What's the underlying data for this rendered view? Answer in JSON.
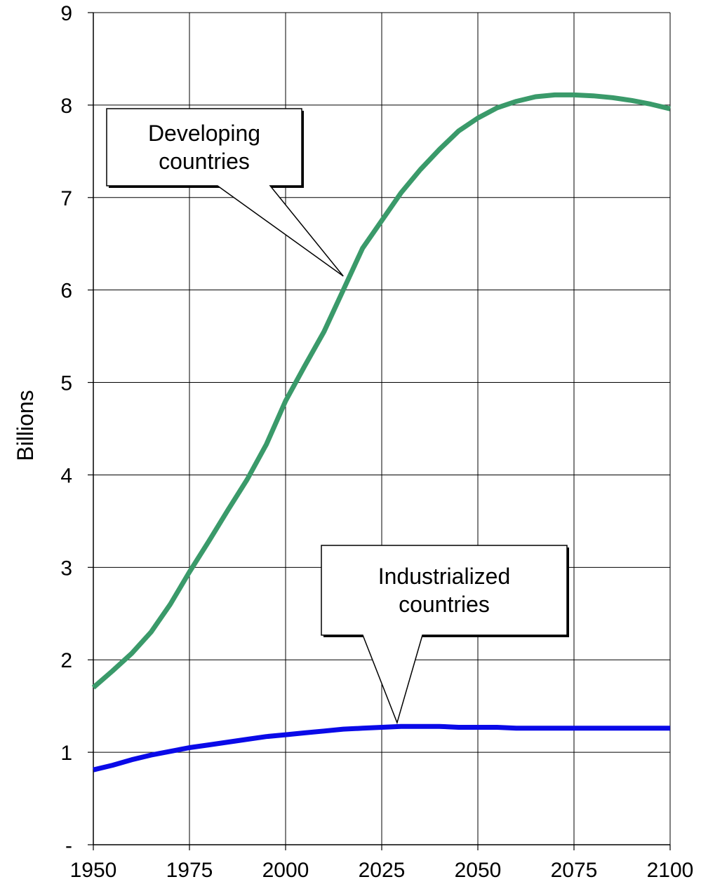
{
  "chart_data": {
    "type": "line",
    "title": "",
    "xlabel": "",
    "ylabel": "Billions",
    "xlim": [
      1950,
      2100
    ],
    "ylim": [
      0,
      9
    ],
    "x_ticks": [
      "1950",
      "1975",
      "2000",
      "2025",
      "2050",
      "2075",
      "2100"
    ],
    "y_ticks": [
      "-",
      "1",
      "2",
      "3",
      "4",
      "5",
      "6",
      "7",
      "8",
      "9"
    ],
    "grid": true,
    "legend": "none",
    "colors": {
      "developing": "#3a9a6a",
      "industrialized": "#0a0ae8"
    },
    "x": [
      1950,
      1955,
      1960,
      1965,
      1970,
      1975,
      1980,
      1985,
      1990,
      1995,
      2000,
      2005,
      2010,
      2015,
      2020,
      2025,
      2030,
      2035,
      2040,
      2045,
      2050,
      2055,
      2060,
      2065,
      2070,
      2075,
      2080,
      2085,
      2090,
      2095,
      2100
    ],
    "series": [
      {
        "key": "developing",
        "values": [
          1.7,
          1.88,
          2.07,
          2.3,
          2.6,
          2.95,
          3.28,
          3.62,
          3.95,
          4.33,
          4.8,
          5.18,
          5.55,
          6.0,
          6.45,
          6.75,
          7.05,
          7.3,
          7.52,
          7.72,
          7.86,
          7.97,
          8.04,
          8.09,
          8.11,
          8.11,
          8.1,
          8.08,
          8.05,
          8.01,
          7.96
        ]
      },
      {
        "key": "industrialized",
        "values": [
          0.81,
          0.86,
          0.92,
          0.97,
          1.01,
          1.05,
          1.08,
          1.11,
          1.14,
          1.17,
          1.19,
          1.21,
          1.23,
          1.25,
          1.26,
          1.27,
          1.28,
          1.28,
          1.28,
          1.27,
          1.27,
          1.27,
          1.26,
          1.26,
          1.26,
          1.26,
          1.26,
          1.26,
          1.26,
          1.26,
          1.26
        ]
      }
    ],
    "annotations": [
      {
        "lines": [
          "Developing",
          "countries"
        ],
        "points_to": "developing",
        "at_x": 2015,
        "at_y": 6.15
      },
      {
        "lines": [
          "Industrialized",
          "countries"
        ],
        "points_to": "industrialized",
        "at_x": 2029,
        "at_y": 1.32
      }
    ]
  }
}
